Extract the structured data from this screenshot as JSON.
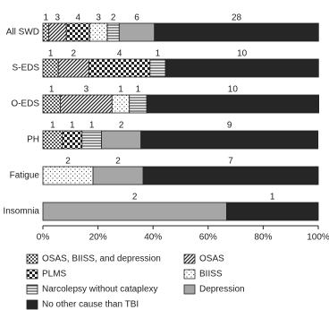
{
  "chart_data": {
    "type": "stacked-bar-horizontal",
    "categories": [
      "All SWD",
      "S-EDS",
      "O-EDS",
      "PH",
      "Fatigue",
      "Insomnia"
    ],
    "series": [
      {
        "name": "OSAS, BIISS, and depression",
        "color": "#222222",
        "pattern": "dense-dots",
        "values": [
          2.1,
          5.6,
          6.3,
          7.1,
          null,
          null
        ],
        "counts": [
          1,
          1,
          1,
          1,
          null,
          null
        ]
      },
      {
        "name": "OSAS",
        "color": "#222222",
        "pattern": "diagonal",
        "values": [
          6.4,
          11.1,
          18.8,
          null,
          null,
          null
        ],
        "counts": [
          3,
          2,
          3,
          null,
          null,
          null
        ]
      },
      {
        "name": "PLMS",
        "color": "#222222",
        "pattern": "checker",
        "values": [
          8.5,
          22.2,
          null,
          7.1,
          null,
          null
        ],
        "counts": [
          4,
          4,
          null,
          1,
          null,
          null
        ]
      },
      {
        "name": "BIISS",
        "color": "#222222",
        "pattern": "sparse-dots",
        "values": [
          6.4,
          null,
          6.3,
          null,
          18.2,
          null
        ],
        "counts": [
          3,
          null,
          1,
          null,
          2,
          null
        ]
      },
      {
        "name": "Narcolepsy without cataplexy",
        "color": "#222222",
        "pattern": "horizontal",
        "values": [
          4.3,
          5.6,
          6.3,
          7.1,
          null,
          null
        ],
        "counts": [
          2,
          1,
          1,
          1,
          null,
          null
        ]
      },
      {
        "name": "Depression",
        "color": "#a6a6a6",
        "pattern": "solid",
        "values": [
          12.8,
          null,
          null,
          14.3,
          18.2,
          66.7
        ],
        "counts": [
          6,
          null,
          null,
          2,
          2,
          2
        ]
      },
      {
        "name": "No other cause than TBI",
        "color": "#262626",
        "pattern": "solid",
        "values": [
          59.6,
          55.6,
          62.5,
          64.3,
          63.6,
          33.3
        ],
        "counts": [
          28,
          10,
          10,
          9,
          7,
          1
        ]
      }
    ],
    "xlim": [
      0,
      100
    ],
    "xticks": [
      {
        "value": 0,
        "label": "0%"
      },
      {
        "value": 20,
        "label": "20%"
      },
      {
        "value": 40,
        "label": "40%"
      },
      {
        "value": 60,
        "label": "60%"
      },
      {
        "value": 80,
        "label": "80%"
      },
      {
        "value": 100,
        "label": "100%"
      }
    ]
  }
}
